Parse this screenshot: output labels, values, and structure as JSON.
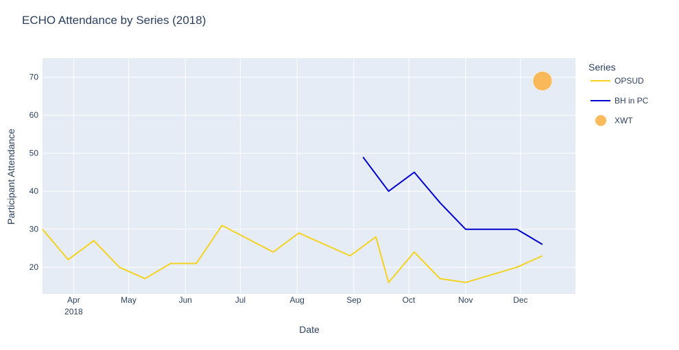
{
  "chart_data": {
    "type": "line",
    "title": "ECHO Attendance by Series (2018)",
    "xlabel": "Date",
    "ylabel": "Participant Attendance",
    "xlim": [
      "2018-03-15",
      "2018-12-31"
    ],
    "ylim": [
      13,
      75
    ],
    "y_ticks": [
      20,
      30,
      40,
      50,
      60,
      70
    ],
    "x_ticks": [
      {
        "date": "2018-04-01",
        "label": "Apr",
        "sublabel": "2018"
      },
      {
        "date": "2018-05-01",
        "label": "May",
        "sublabel": ""
      },
      {
        "date": "2018-06-01",
        "label": "Jun",
        "sublabel": ""
      },
      {
        "date": "2018-07-01",
        "label": "Jul",
        "sublabel": ""
      },
      {
        "date": "2018-08-01",
        "label": "Aug",
        "sublabel": ""
      },
      {
        "date": "2018-09-01",
        "label": "Sep",
        "sublabel": ""
      },
      {
        "date": "2018-10-01",
        "label": "Oct",
        "sublabel": ""
      },
      {
        "date": "2018-11-01",
        "label": "Nov",
        "sublabel": ""
      },
      {
        "date": "2018-12-01",
        "label": "Dec",
        "sublabel": ""
      }
    ],
    "grid": true,
    "legend_title": "Series",
    "legend_position": "right",
    "series": [
      {
        "name": "OPSUD",
        "mode": "line",
        "color": "#f5d21f",
        "points": [
          {
            "x": "2018-03-15",
            "y": 30
          },
          {
            "x": "2018-03-29",
            "y": 22
          },
          {
            "x": "2018-04-12",
            "y": 27
          },
          {
            "x": "2018-04-26",
            "y": 20
          },
          {
            "x": "2018-05-10",
            "y": 17
          },
          {
            "x": "2018-05-24",
            "y": 21
          },
          {
            "x": "2018-06-07",
            "y": 21
          },
          {
            "x": "2018-06-21",
            "y": 31
          },
          {
            "x": "2018-07-19",
            "y": 24
          },
          {
            "x": "2018-08-02",
            "y": 29
          },
          {
            "x": "2018-08-30",
            "y": 23
          },
          {
            "x": "2018-09-13",
            "y": 28
          },
          {
            "x": "2018-09-20",
            "y": 16
          },
          {
            "x": "2018-10-04",
            "y": 24
          },
          {
            "x": "2018-10-18",
            "y": 17
          },
          {
            "x": "2018-11-01",
            "y": 16
          },
          {
            "x": "2018-11-29",
            "y": 20
          },
          {
            "x": "2018-12-13",
            "y": 23
          }
        ]
      },
      {
        "name": "BH in PC",
        "mode": "line",
        "color": "#0000cd",
        "points": [
          {
            "x": "2018-09-06",
            "y": 49
          },
          {
            "x": "2018-09-20",
            "y": 40
          },
          {
            "x": "2018-10-04",
            "y": 45
          },
          {
            "x": "2018-10-18",
            "y": 37
          },
          {
            "x": "2018-11-01",
            "y": 30
          },
          {
            "x": "2018-11-29",
            "y": 30
          },
          {
            "x": "2018-12-13",
            "y": 26
          }
        ]
      },
      {
        "name": "XWT",
        "mode": "marker",
        "color": "#fbb44a",
        "points": [
          {
            "x": "2018-12-13",
            "y": 69
          }
        ]
      }
    ]
  }
}
